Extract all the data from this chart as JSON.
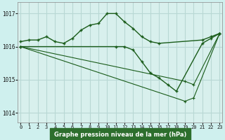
{
  "title": "Graphe pression niveau de la mer (hPa)",
  "background_color": "#cff0ee",
  "plot_bg_color": "#d8f0ed",
  "grid_color": "#b8d8d4",
  "line_color": "#1a5c1a",
  "label_bg": "#2d6e2d",
  "label_fg": "#ffffff",
  "x_ticks": [
    0,
    1,
    2,
    3,
    4,
    5,
    6,
    7,
    8,
    9,
    10,
    11,
    12,
    13,
    14,
    15,
    16,
    17,
    18,
    19,
    20,
    21,
    22,
    23
  ],
  "y_ticks": [
    1014,
    1015,
    1016,
    1017
  ],
  "ylim": [
    1013.7,
    1017.35
  ],
  "xlim": [
    -0.3,
    23.3
  ],
  "series": [
    {
      "x": [
        0,
        1,
        2,
        3,
        4,
        5,
        6,
        7,
        8,
        9,
        10,
        11,
        12,
        13,
        14,
        15,
        16,
        21,
        22,
        23
      ],
      "y": [
        1016.15,
        1016.2,
        1016.2,
        1016.3,
        1016.15,
        1016.1,
        1016.25,
        1016.5,
        1016.65,
        1016.7,
        1017.0,
        1017.0,
        1016.75,
        1016.55,
        1016.3,
        1016.15,
        1016.1,
        1016.2,
        1016.3,
        1016.4
      ]
    },
    {
      "x": [
        0,
        11,
        12,
        13,
        14,
        15,
        16,
        17,
        18,
        21,
        22,
        23
      ],
      "y": [
        1016.0,
        1016.0,
        1016.0,
        1015.9,
        1015.55,
        1015.2,
        1015.05,
        1014.85,
        1014.65,
        1016.1,
        1016.25,
        1016.4
      ]
    },
    {
      "x": [
        0,
        19,
        20,
        23
      ],
      "y": [
        1016.0,
        1014.95,
        1014.85,
        1016.4
      ]
    },
    {
      "x": [
        0,
        19,
        20,
        23
      ],
      "y": [
        1016.0,
        1014.35,
        1014.45,
        1016.4
      ]
    }
  ]
}
